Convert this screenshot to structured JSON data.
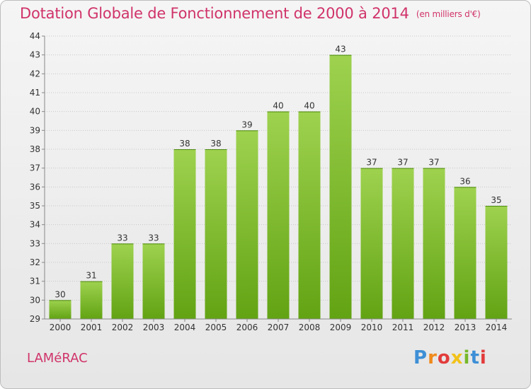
{
  "header": {
    "title": "Dotation Globale de Fonctionnement de 2000 à 2014",
    "subtitle": "(en milliers d'€)"
  },
  "footer": {
    "commune": "LAMéRAC",
    "logo_letters": [
      "P",
      "r",
      "o",
      "x",
      "i",
      "t",
      "i"
    ],
    "logo_colors": [
      "#3d8fd6",
      "#f08a1c",
      "#e23b3b",
      "#f2c21b",
      "#77b82a",
      "#3d8fd6",
      "#e23b3b"
    ]
  },
  "colors": {
    "title": "#d0336a",
    "bar_top": "#9ed24f",
    "bar_bottom": "#62a313",
    "grid": "#c8c8c8"
  },
  "chart_data": {
    "type": "bar",
    "title": "Dotation Globale de Fonctionnement de 2000 à 2014",
    "subtitle": "(en milliers d'€)",
    "categories": [
      "2000",
      "2001",
      "2002",
      "2003",
      "2004",
      "2005",
      "2006",
      "2007",
      "2008",
      "2009",
      "2010",
      "2011",
      "2012",
      "2013",
      "2014"
    ],
    "values": [
      30,
      31,
      33,
      33,
      38,
      38,
      39,
      40,
      40,
      43,
      37,
      37,
      37,
      36,
      35
    ],
    "ylim": [
      29,
      44
    ],
    "yticks": [
      29,
      30,
      31,
      32,
      33,
      34,
      35,
      36,
      37,
      38,
      39,
      40,
      41,
      42,
      43,
      44
    ],
    "grid": true,
    "data_labels": true
  }
}
